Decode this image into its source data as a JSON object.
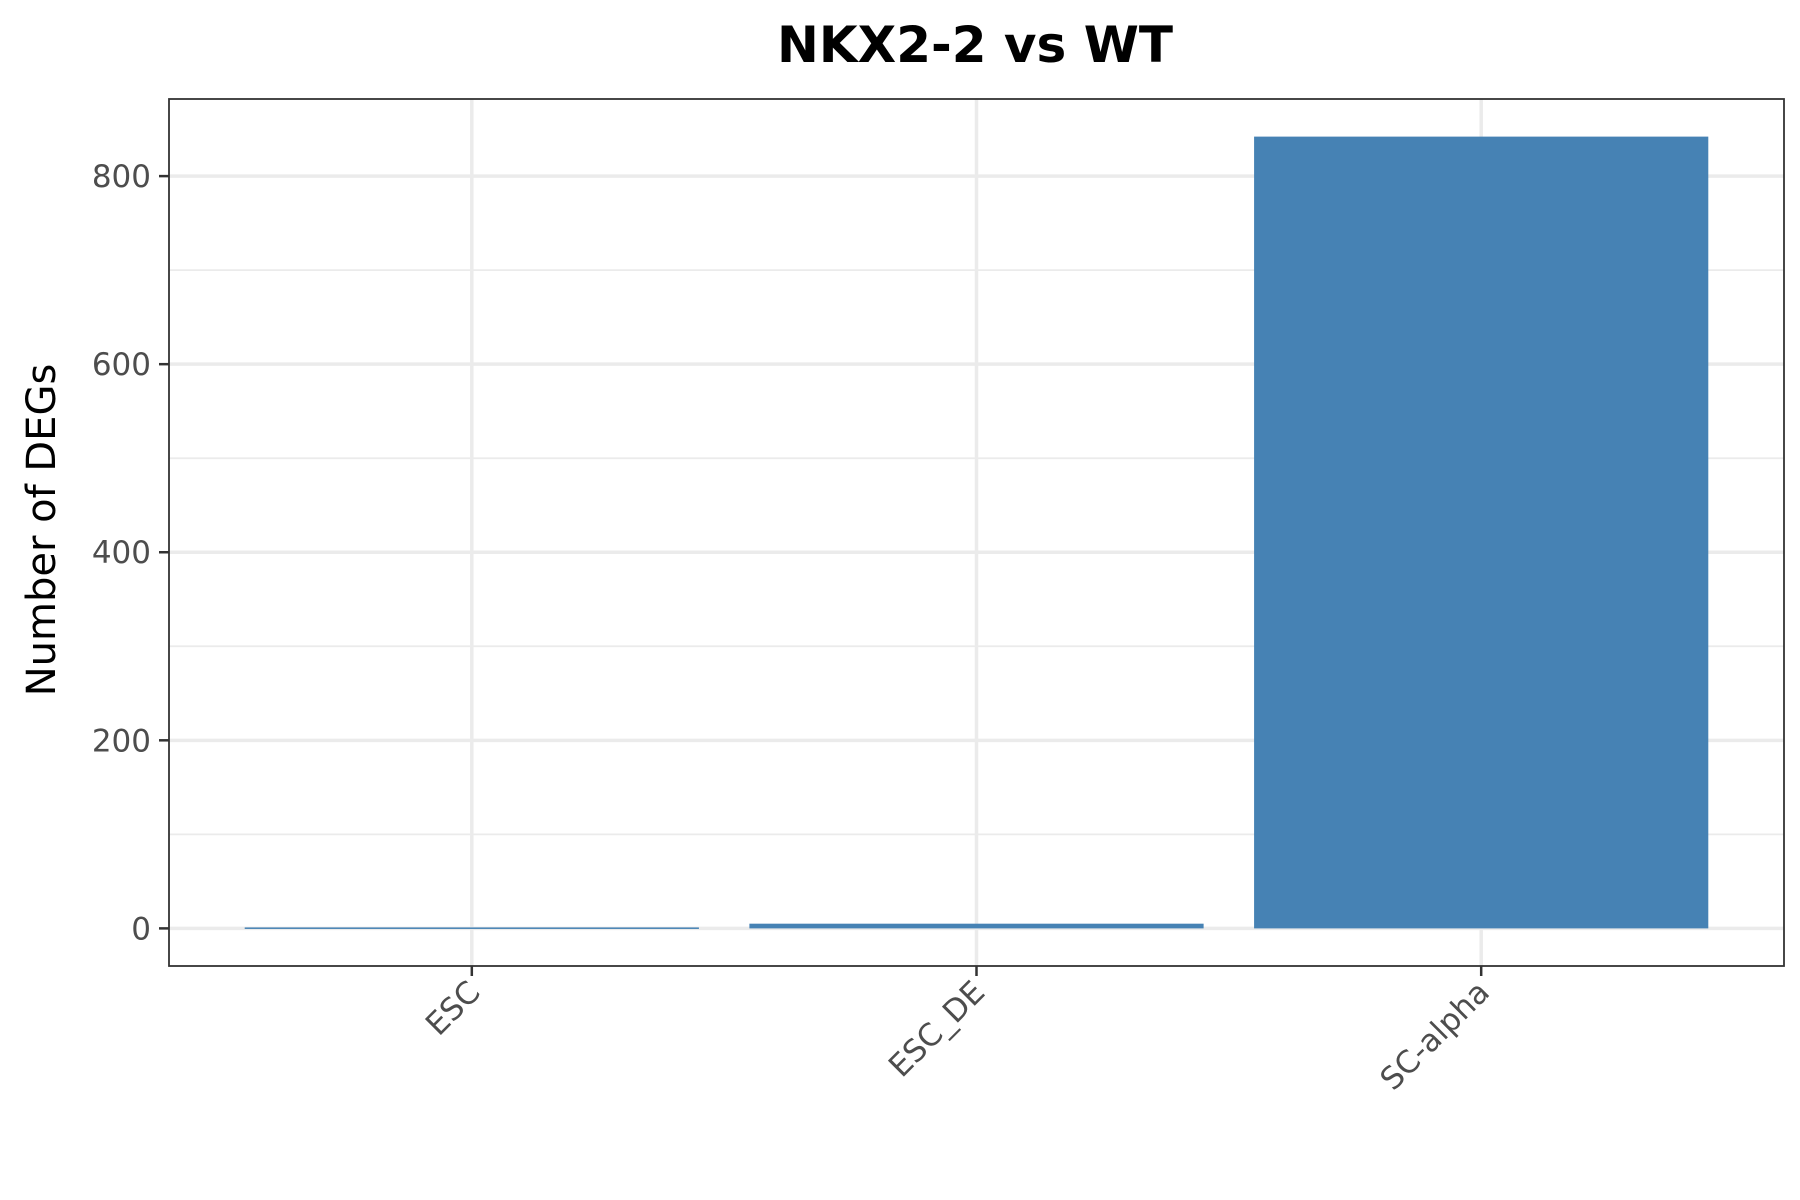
{
  "chart_data": {
    "type": "bar",
    "title": "NKX2-2 vs WT",
    "xlabel": "",
    "ylabel": "Number of DEGs",
    "categories": [
      "ESC",
      "ESC_DE",
      "SC-alpha"
    ],
    "values": [
      1,
      5,
      842
    ],
    "ylim": [
      -40,
      882
    ],
    "yticks": [
      0,
      200,
      400,
      600,
      800
    ],
    "grid": true,
    "bar_color": "#4682B4",
    "legend": "none"
  }
}
